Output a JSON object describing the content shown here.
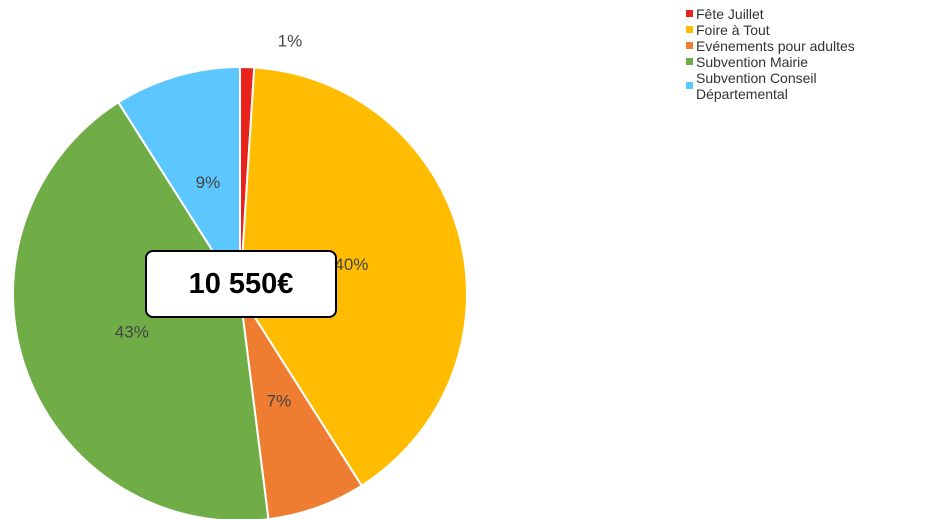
{
  "chart_data": {
    "type": "pie",
    "categories": [
      "Fête Juillet",
      "Foire à Tout",
      "Evénements pour adultes",
      "Subvention Mairie",
      "Subvention Conseil Départemental"
    ],
    "values": [
      1,
      40,
      7,
      43,
      9
    ],
    "value_labels": [
      "1%",
      "40%",
      "7%",
      "43%",
      "9%"
    ],
    "colors": [
      "#e8231c",
      "#ffbc00",
      "#ee7d31",
      "#70ad47",
      "#5cc6ff"
    ],
    "annotation": "10 550€"
  }
}
